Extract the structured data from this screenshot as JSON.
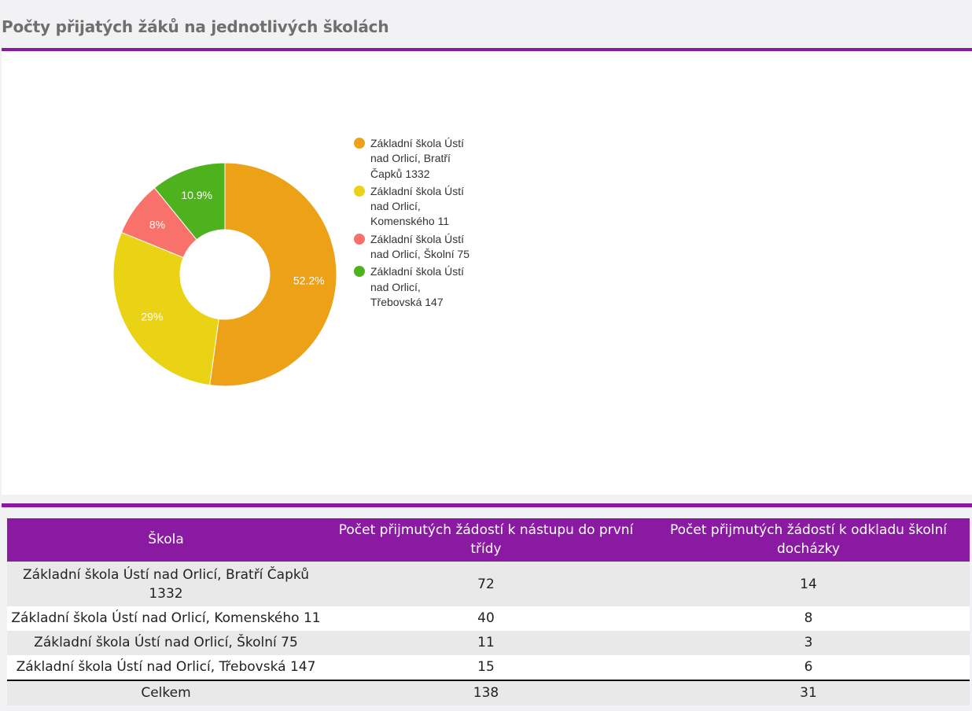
{
  "page": {
    "title": "Počty přijatých žáků na jednotlivých školách",
    "accent_color": "#8b1aa3"
  },
  "chart_data": {
    "type": "pie",
    "donut": true,
    "legend_position": "right",
    "series": [
      {
        "name": "Základní škola Ústí nad Orlicí, Bratří Čapků 1332",
        "value": 72,
        "label": "52.2%",
        "color": "#eca116"
      },
      {
        "name": "Základní škola Ústí nad Orlicí, Komenského 11",
        "value": 40,
        "label": "29%",
        "color": "#ead214"
      },
      {
        "name": "Základní škola Ústí nad Orlicí, Školní 75",
        "value": 11,
        "label": "8%",
        "color": "#f8726b"
      },
      {
        "name": "Základní škola Ústí nad Orlicí, Třebovská 147",
        "value": 15,
        "label": "10.9%",
        "color": "#4eb21f"
      }
    ]
  },
  "table": {
    "headers": [
      "Škola",
      "Počet přijmutých žádostí k nástupu do první třídy",
      "Počet přijmutých žádostí k odkladu školní docházky"
    ],
    "rows": [
      {
        "school": "Základní škola Ústí nad Orlicí, Bratří Čapků 1332",
        "first_grade": "72",
        "postponement": "14"
      },
      {
        "school": "Základní škola Ústí nad Orlicí, Komenského 11",
        "first_grade": "40",
        "postponement": "8"
      },
      {
        "school": "Základní škola Ústí nad Orlicí, Školní 75",
        "first_grade": "11",
        "postponement": "3"
      },
      {
        "school": "Základní škola Ústí nad Orlicí, Třebovská 147",
        "first_grade": "15",
        "postponement": "6"
      }
    ],
    "total": {
      "label": "Celkem",
      "first_grade": "138",
      "postponement": "31"
    }
  }
}
